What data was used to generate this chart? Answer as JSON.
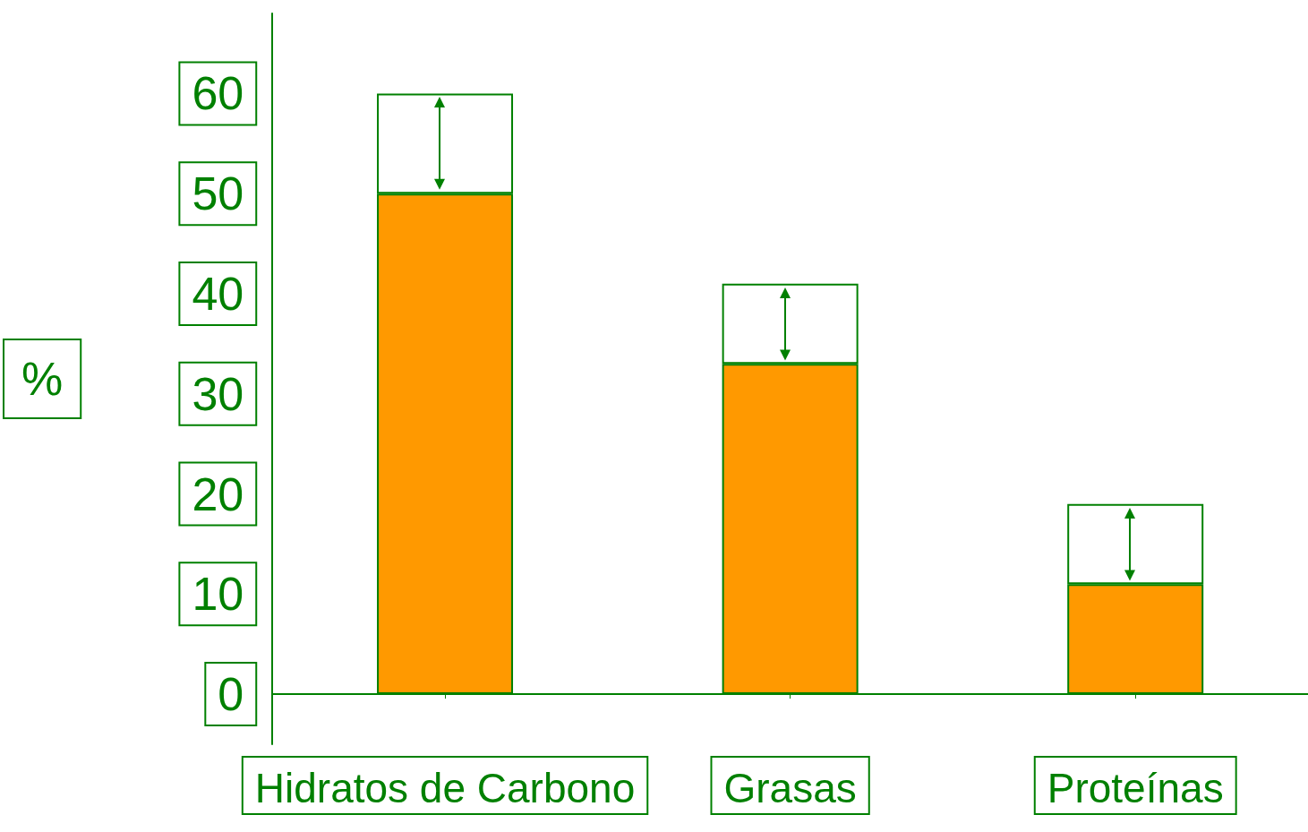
{
  "chart_data": {
    "type": "bar",
    "stacked": true,
    "ylabel": "%",
    "categories": [
      "Hidratos de Carbono",
      "Grasas",
      "Proteínas"
    ],
    "series": [
      {
        "color": "#ff9900",
        "values": [
          50,
          33,
          11
        ]
      },
      {
        "color": "#ffffff",
        "values": [
          10,
          8,
          8
        ]
      }
    ],
    "ylim": [
      -5,
      68
    ],
    "yticks": [
      0,
      10,
      20,
      30,
      40,
      50,
      60
    ],
    "grid": false
  }
}
